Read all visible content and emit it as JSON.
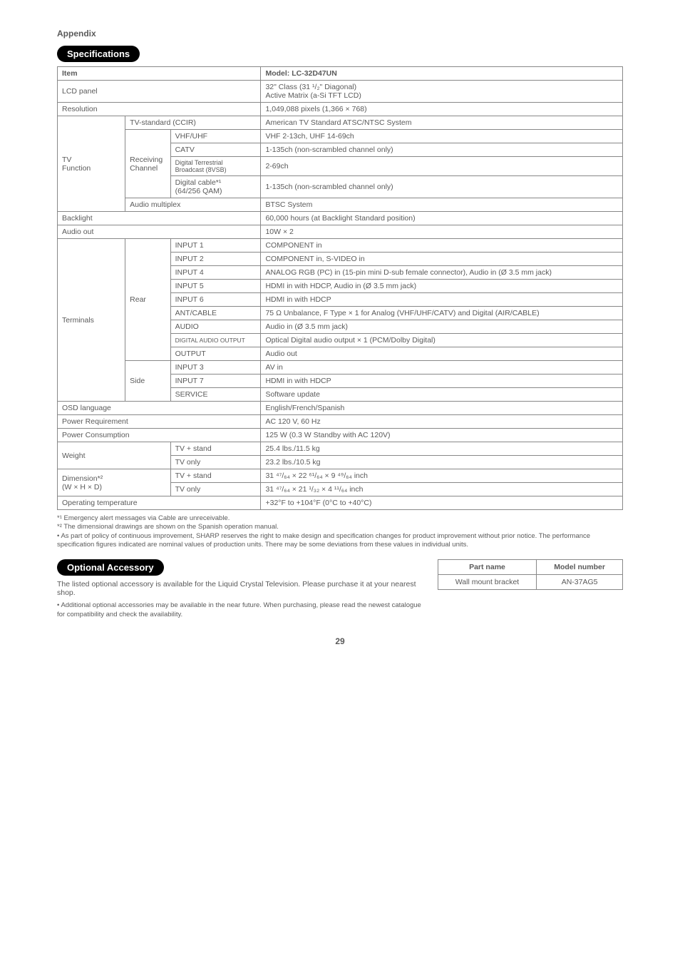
{
  "appendix": "Appendix",
  "section1_title": "Specifications",
  "spec_header": {
    "item": "Item",
    "model": "Model: LC-32D47UN"
  },
  "rows": {
    "lcd_panel": {
      "label": "LCD panel",
      "value": "32\" Class (31 ¹/₂\" Diagonal)\nActive Matrix (a-Si TFT LCD)"
    },
    "resolution": {
      "label": "Resolution",
      "value": "1,049,088 pixels (1,366 × 768)"
    },
    "tv_func": {
      "label": "TV\nFunction"
    },
    "tv_std": {
      "label": "TV-standard (CCIR)",
      "value": "American TV Standard ATSC/NTSC System"
    },
    "recv_ch": {
      "label": "Receiving\nChannel"
    },
    "vhf": {
      "label": "VHF/UHF",
      "value": "VHF 2-13ch, UHF 14-69ch"
    },
    "catv": {
      "label": "CATV",
      "value": "1-135ch (non-scrambled channel only)"
    },
    "dt": {
      "label": "Digital Terrestrial\nBroadcast (8VSB)",
      "value": "2-69ch"
    },
    "dc": {
      "label": "Digital cable*¹\n(64/256 QAM)",
      "value": "1-135ch (non-scrambled channel only)"
    },
    "audio_mux": {
      "label": "Audio multiplex",
      "value": "BTSC System"
    },
    "backlight": {
      "label": "Backlight",
      "value": "60,000 hours (at Backlight Standard position)"
    },
    "audio_out": {
      "label": "Audio out",
      "value": "10W × 2"
    },
    "terminals": {
      "label": "Terminals"
    },
    "rear": {
      "label": "Rear"
    },
    "side": {
      "label": "Side"
    },
    "in1": {
      "label": "INPUT 1",
      "value": "COMPONENT in"
    },
    "in2": {
      "label": "INPUT 2",
      "value": "COMPONENT in, S-VIDEO in"
    },
    "in4": {
      "label": "INPUT 4",
      "value": "ANALOG RGB (PC) in (15-pin mini D-sub female connector), Audio in (Ø 3.5 mm jack)"
    },
    "in5": {
      "label": "INPUT 5",
      "value": "HDMI in with HDCP, Audio in (Ø 3.5 mm jack)"
    },
    "in6": {
      "label": "INPUT 6",
      "value": "HDMI in with HDCP"
    },
    "ant": {
      "label": "ANT/CABLE",
      "value": "75 Ω Unbalance, F Type × 1 for Analog (VHF/UHF/CATV) and Digital (AIR/CABLE)"
    },
    "audio": {
      "label": "AUDIO",
      "value": "Audio in (Ø 3.5 mm jack)"
    },
    "dao": {
      "label": "DIGITAL AUDIO OUTPUT",
      "value": "Optical Digital audio output × 1 (PCM/Dolby Digital)"
    },
    "output": {
      "label": "OUTPUT",
      "value": "Audio out"
    },
    "in3": {
      "label": "INPUT 3",
      "value": "AV in"
    },
    "in7": {
      "label": "INPUT 7",
      "value": "HDMI in with HDCP"
    },
    "service": {
      "label": "SERVICE",
      "value": "Software update"
    },
    "osd": {
      "label": "OSD language",
      "value": "English/French/Spanish"
    },
    "power_req": {
      "label": "Power Requirement",
      "value": "AC 120 V, 60 Hz"
    },
    "power_con": {
      "label": "Power Consumption",
      "value": "125 W (0.3 W Standby with AC 120V)"
    },
    "weight": {
      "label": "Weight"
    },
    "dimension": {
      "label": "Dimension*²\n(W × H × D)"
    },
    "w_stand": {
      "label": "TV + stand",
      "value": "25.4 lbs./11.5 kg"
    },
    "w_only": {
      "label": "TV only",
      "value": "23.2 lbs./10.5 kg"
    },
    "d_stand": {
      "label": "TV + stand",
      "value": "31 ⁴⁷/₆₄ × 22 ⁶¹/₆₄ × 9 ⁴⁹/₆₄ inch"
    },
    "d_only": {
      "label": "TV only",
      "value": "31 ⁴⁷/₆₄ × 21 ¹/₃₂ × 4 ¹¹/₆₄ inch"
    },
    "op_temp": {
      "label": "Operating temperature",
      "value": "+32°F to +104°F (0°C to +40°C)"
    }
  },
  "footnotes": {
    "f1": "*¹ Emergency alert messages via Cable are unreceivable.",
    "f2": "*² The dimensional drawings are shown on the Spanish operation manual.",
    "f3": "• As part of policy of continuous improvement, SHARP reserves the right to make design and specification changes for product improvement without prior notice. The performance specification figures indicated are nominal values of production units. There may be some deviations from these values in individual units."
  },
  "section2_title": "Optional Accessory",
  "opt_desc": "The listed optional accessory is available for the Liquid Crystal Television. Please purchase it at your nearest shop.",
  "opt_note": "• Additional optional accessories may be available in the near future. When purchasing, please read the newest catalogue for compatibility and check the availability.",
  "part_table": {
    "h1": "Part name",
    "h2": "Model number",
    "r1c1": "Wall mount bracket",
    "r1c2": "AN-37AG5"
  },
  "page": "29"
}
